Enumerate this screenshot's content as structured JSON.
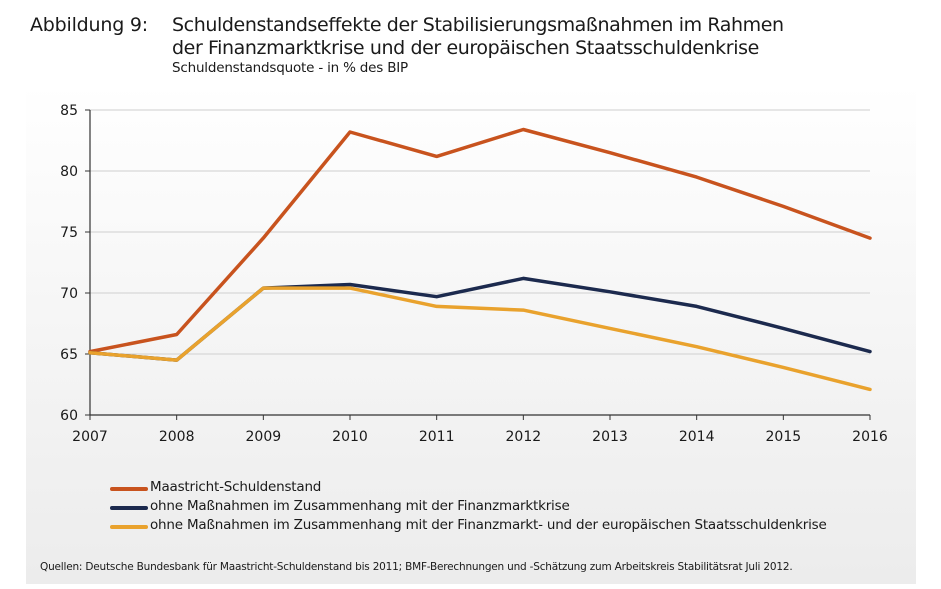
{
  "header": {
    "figure_label": "Abbildung 9:",
    "title_line1": "Schuldenstandseffekte der Stabilisierungsmaßnahmen im Rahmen",
    "title_line2": "der Finanzmarktkrise und der europäischen Staatsschuldenkrise",
    "subtitle": "Schuldenstandsquote - in % des BIP"
  },
  "chart_data": {
    "type": "line",
    "title": "Schuldenstandseffekte der Stabilisierungsmaßnahmen im Rahmen der Finanzmarktkrise und der europäischen Staatsschuldenkrise",
    "subtitle": "Schuldenstandsquote - in % des BIP",
    "xlabel": "",
    "ylabel": "",
    "x": [
      "2007",
      "2008",
      "2009",
      "2010",
      "2011",
      "2012",
      "2013",
      "2014",
      "2015",
      "2016"
    ],
    "ylim": [
      60,
      85
    ],
    "yticks": [
      60,
      65,
      70,
      75,
      80,
      85
    ],
    "grid": true,
    "legend_position": "bottom-left",
    "series": [
      {
        "name": "Maastricht-Schuldenstand",
        "color": "#c8531e",
        "values": [
          65.2,
          66.6,
          74.5,
          83.2,
          81.2,
          83.4,
          81.5,
          79.5,
          77.1,
          74.5
        ]
      },
      {
        "name": "ohne Maßnahmen im Zusammenhang mit der Finanzmarktkrise",
        "color": "#1c2a4e",
        "values": [
          65.1,
          64.5,
          70.4,
          70.7,
          69.7,
          71.2,
          70.1,
          68.9,
          67.1,
          65.2
        ]
      },
      {
        "name": "ohne Maßnahmen im Zusammenhang mit der Finanzmarkt- und der europäischen Staatsschuldenkrise",
        "color": "#e9a22d",
        "values": [
          65.1,
          64.5,
          70.4,
          70.4,
          68.9,
          68.6,
          67.1,
          65.6,
          63.9,
          62.1
        ]
      }
    ]
  },
  "source": "Quellen:  Deutsche Bundesbank für Maastricht-Schuldenstand bis 2011; BMF-Berechnungen und -Schätzung zum Arbeitskreis Stabilitätsrat Juli 2012."
}
